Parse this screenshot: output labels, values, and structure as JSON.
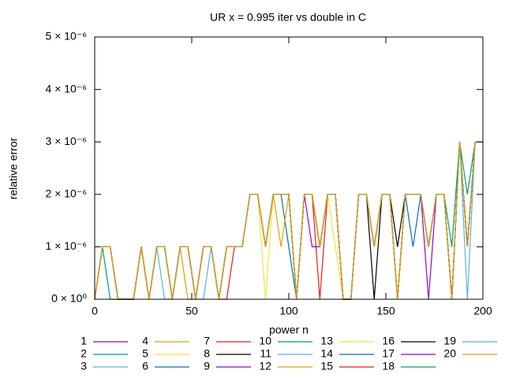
{
  "chart_data": {
    "type": "line",
    "title": "UR x = 0.995 iter vs double in C",
    "x_label": "power n",
    "y_label": "relative error",
    "xlim": [
      0,
      200
    ],
    "ylim": [
      0,
      5e-06
    ],
    "xticks": [
      0,
      50,
      100,
      150,
      200
    ],
    "yticks": [
      {
        "value": 0,
        "label": "0 × 10⁰"
      },
      {
        "value": 1e-06,
        "label": "1 × 10⁻⁶"
      },
      {
        "value": 2e-06,
        "label": "2 × 10⁻⁶"
      },
      {
        "value": 3e-06,
        "label": "3 × 10⁻⁶"
      },
      {
        "value": 4e-06,
        "label": "4 × 10⁻⁶"
      },
      {
        "value": 5e-06,
        "label": "5 × 10⁻⁶"
      }
    ],
    "x": [
      0,
      4,
      8,
      12,
      16,
      20,
      24,
      28,
      32,
      36,
      40,
      44,
      48,
      52,
      56,
      60,
      64,
      68,
      72,
      76,
      80,
      84,
      88,
      92,
      96,
      100,
      104,
      108,
      112,
      116,
      120,
      124,
      128,
      132,
      136,
      140,
      144,
      148,
      152,
      156,
      160,
      164,
      168,
      172,
      176,
      180,
      184,
      188,
      192,
      196,
      200
    ],
    "series": [
      {
        "name": "1",
        "color": "#9400d3",
        "values": [
          0,
          1e-06,
          1e-06,
          0,
          0,
          0,
          1e-06,
          0,
          1e-06,
          1e-06,
          0,
          1e-06,
          1e-06,
          0,
          1e-06,
          1e-06,
          0,
          1e-06,
          1e-06,
          1e-06,
          2e-06,
          2e-06,
          1e-06,
          2e-06,
          2e-06,
          2e-06,
          0,
          2e-06,
          2e-06,
          1e-06,
          2e-06,
          2e-06,
          0,
          0,
          2e-06,
          2e-06,
          1e-06,
          2e-06,
          2e-06,
          0,
          2e-06,
          2e-06,
          2e-06,
          1e-06,
          2e-06,
          2e-06,
          0,
          3e-06,
          1e-06,
          3e-06,
          3e-06
        ]
      },
      {
        "name": "2",
        "color": "#009e73",
        "values": [
          0,
          1e-06,
          0,
          0,
          0,
          0,
          1e-06,
          0,
          1e-06,
          1e-06,
          0,
          1e-06,
          1e-06,
          0,
          1e-06,
          1e-06,
          0,
          1e-06,
          1e-06,
          1e-06,
          2e-06,
          2e-06,
          1e-06,
          2e-06,
          2e-06,
          2e-06,
          0,
          2e-06,
          2e-06,
          1e-06,
          2e-06,
          2e-06,
          0,
          0,
          2e-06,
          2e-06,
          1e-06,
          2e-06,
          2e-06,
          0,
          2e-06,
          2e-06,
          2e-06,
          1e-06,
          2e-06,
          2e-06,
          0,
          3e-06,
          1e-06,
          3e-06,
          3e-06
        ]
      },
      {
        "name": "3",
        "color": "#56b4e9",
        "values": [
          0,
          1e-06,
          1e-06,
          0,
          0,
          0,
          1e-06,
          0,
          1e-06,
          0,
          0,
          1e-06,
          1e-06,
          0,
          1e-06,
          1e-06,
          0,
          1e-06,
          1e-06,
          1e-06,
          2e-06,
          2e-06,
          1e-06,
          2e-06,
          2e-06,
          2e-06,
          0,
          2e-06,
          2e-06,
          1e-06,
          2e-06,
          2e-06,
          0,
          0,
          2e-06,
          2e-06,
          1e-06,
          2e-06,
          2e-06,
          0,
          2e-06,
          2e-06,
          2e-06,
          1e-06,
          2e-06,
          2e-06,
          0,
          3e-06,
          1e-06,
          3e-06,
          3e-06
        ]
      },
      {
        "name": "4",
        "color": "#e69f00",
        "values": [
          0,
          1e-06,
          1e-06,
          0,
          0,
          0,
          1e-06,
          0,
          1e-06,
          1e-06,
          0,
          1e-06,
          0,
          0,
          1e-06,
          1e-06,
          0,
          1e-06,
          1e-06,
          1e-06,
          2e-06,
          2e-06,
          1e-06,
          2e-06,
          2e-06,
          2e-06,
          0,
          2e-06,
          2e-06,
          1e-06,
          2e-06,
          2e-06,
          0,
          0,
          2e-06,
          2e-06,
          1e-06,
          2e-06,
          2e-06,
          0,
          2e-06,
          2e-06,
          2e-06,
          1e-06,
          2e-06,
          2e-06,
          0,
          3e-06,
          1e-06,
          3e-06,
          3e-06
        ]
      },
      {
        "name": "5",
        "color": "#f0e442",
        "values": [
          0,
          1e-06,
          1e-06,
          0,
          0,
          0,
          1e-06,
          0,
          1e-06,
          1e-06,
          0,
          1e-06,
          1e-06,
          0,
          1e-06,
          1e-06,
          0,
          1e-06,
          1e-06,
          1e-06,
          2e-06,
          2e-06,
          0,
          2e-06,
          2e-06,
          2e-06,
          0,
          2e-06,
          2e-06,
          1e-06,
          2e-06,
          2e-06,
          0,
          0,
          2e-06,
          2e-06,
          1e-06,
          2e-06,
          2e-06,
          0,
          2e-06,
          2e-06,
          2e-06,
          1e-06,
          2e-06,
          2e-06,
          0,
          3e-06,
          1e-06,
          3e-06,
          3e-06
        ]
      },
      {
        "name": "6",
        "color": "#0072b2",
        "values": [
          0,
          1e-06,
          1e-06,
          0,
          0,
          0,
          1e-06,
          0,
          1e-06,
          1e-06,
          0,
          1e-06,
          1e-06,
          0,
          1e-06,
          1e-06,
          0,
          1e-06,
          1e-06,
          1e-06,
          2e-06,
          2e-06,
          1e-06,
          2e-06,
          2e-06,
          1e-06,
          0,
          2e-06,
          2e-06,
          1e-06,
          2e-06,
          2e-06,
          0,
          0,
          2e-06,
          2e-06,
          1e-06,
          2e-06,
          2e-06,
          0,
          2e-06,
          2e-06,
          2e-06,
          1e-06,
          2e-06,
          2e-06,
          0,
          3e-06,
          1e-06,
          3e-06,
          3e-06
        ]
      },
      {
        "name": "7",
        "color": "#e51e10",
        "values": [
          0,
          1e-06,
          1e-06,
          0,
          0,
          0,
          1e-06,
          0,
          1e-06,
          1e-06,
          0,
          1e-06,
          1e-06,
          0,
          1e-06,
          1e-06,
          0,
          1e-06,
          1e-06,
          1e-06,
          2e-06,
          2e-06,
          1e-06,
          2e-06,
          2e-06,
          2e-06,
          0,
          2e-06,
          2e-06,
          0,
          2e-06,
          2e-06,
          0,
          0,
          2e-06,
          2e-06,
          1e-06,
          2e-06,
          2e-06,
          0,
          2e-06,
          2e-06,
          2e-06,
          1e-06,
          2e-06,
          2e-06,
          0,
          3e-06,
          1e-06,
          3e-06,
          3e-06
        ]
      },
      {
        "name": "8",
        "color": "#000000",
        "values": [
          0,
          1e-06,
          1e-06,
          0,
          0,
          0,
          1e-06,
          0,
          1e-06,
          1e-06,
          0,
          1e-06,
          1e-06,
          0,
          1e-06,
          1e-06,
          0,
          1e-06,
          1e-06,
          1e-06,
          2e-06,
          2e-06,
          1e-06,
          2e-06,
          2e-06,
          2e-06,
          0,
          2e-06,
          2e-06,
          1e-06,
          2e-06,
          2e-06,
          0,
          0,
          2e-06,
          2e-06,
          0,
          2e-06,
          2e-06,
          0,
          2e-06,
          2e-06,
          2e-06,
          1e-06,
          2e-06,
          2e-06,
          0,
          3e-06,
          1e-06,
          3e-06,
          3e-06
        ]
      },
      {
        "name": "9",
        "color": "#9400d3",
        "values": [
          0,
          1e-06,
          1e-06,
          0,
          0,
          0,
          1e-06,
          0,
          1e-06,
          1e-06,
          0,
          1e-06,
          1e-06,
          0,
          1e-06,
          1e-06,
          0,
          1e-06,
          1e-06,
          1e-06,
          2e-06,
          2e-06,
          1e-06,
          2e-06,
          2e-06,
          2e-06,
          0,
          2e-06,
          2e-06,
          1e-06,
          2e-06,
          2e-06,
          0,
          0,
          2e-06,
          2e-06,
          1e-06,
          2e-06,
          2e-06,
          0,
          2e-06,
          2e-06,
          2e-06,
          0,
          2e-06,
          2e-06,
          0,
          3e-06,
          1e-06,
          3e-06,
          3e-06
        ]
      },
      {
        "name": "10",
        "color": "#009e73",
        "values": [
          0,
          1e-06,
          1e-06,
          0,
          0,
          0,
          1e-06,
          0,
          1e-06,
          1e-06,
          0,
          1e-06,
          1e-06,
          0,
          1e-06,
          1e-06,
          0,
          1e-06,
          1e-06,
          1e-06,
          2e-06,
          2e-06,
          1e-06,
          2e-06,
          2e-06,
          2e-06,
          0,
          2e-06,
          2e-06,
          1e-06,
          2e-06,
          2e-06,
          0,
          0,
          2e-06,
          2e-06,
          1e-06,
          2e-06,
          2e-06,
          0,
          2e-06,
          2e-06,
          2e-06,
          1e-06,
          2e-06,
          2e-06,
          0,
          3e-06,
          2e-06,
          3e-06,
          3e-06
        ]
      },
      {
        "name": "11",
        "color": "#56b4e9",
        "values": [
          0,
          1e-06,
          1e-06,
          0,
          0,
          0,
          1e-06,
          0,
          1e-06,
          1e-06,
          0,
          1e-06,
          1e-06,
          0,
          0,
          1e-06,
          0,
          1e-06,
          1e-06,
          1e-06,
          2e-06,
          2e-06,
          1e-06,
          2e-06,
          2e-06,
          2e-06,
          0,
          2e-06,
          2e-06,
          1e-06,
          2e-06,
          2e-06,
          0,
          0,
          2e-06,
          2e-06,
          1e-06,
          2e-06,
          2e-06,
          0,
          2e-06,
          2e-06,
          2e-06,
          1e-06,
          2e-06,
          2e-06,
          0,
          3e-06,
          1e-06,
          3e-06,
          3e-06
        ]
      },
      {
        "name": "12",
        "color": "#e69f00",
        "values": [
          0,
          1e-06,
          1e-06,
          0,
          0,
          0,
          1e-06,
          0,
          1e-06,
          1e-06,
          0,
          1e-06,
          1e-06,
          0,
          1e-06,
          1e-06,
          0,
          1e-06,
          1e-06,
          1e-06,
          2e-06,
          2e-06,
          1e-06,
          2e-06,
          1e-06,
          2e-06,
          0,
          2e-06,
          2e-06,
          1e-06,
          2e-06,
          2e-06,
          0,
          0,
          2e-06,
          2e-06,
          1e-06,
          2e-06,
          2e-06,
          0,
          2e-06,
          2e-06,
          2e-06,
          1e-06,
          2e-06,
          2e-06,
          0,
          3e-06,
          1e-06,
          3e-06,
          3e-06
        ]
      },
      {
        "name": "13",
        "color": "#f0e442",
        "values": [
          0,
          1e-06,
          1e-06,
          0,
          0,
          0,
          1e-06,
          0,
          1e-06,
          1e-06,
          0,
          1e-06,
          1e-06,
          0,
          1e-06,
          1e-06,
          0,
          1e-06,
          1e-06,
          1e-06,
          2e-06,
          2e-06,
          1e-06,
          2e-06,
          2e-06,
          2e-06,
          0,
          2e-06,
          2e-06,
          1e-06,
          2e-06,
          1e-06,
          0,
          0,
          2e-06,
          2e-06,
          1e-06,
          2e-06,
          2e-06,
          0,
          2e-06,
          2e-06,
          2e-06,
          1e-06,
          2e-06,
          2e-06,
          0,
          3e-06,
          1e-06,
          3e-06,
          3e-06
        ]
      },
      {
        "name": "14",
        "color": "#0072b2",
        "values": [
          0,
          1e-06,
          1e-06,
          0,
          0,
          0,
          1e-06,
          0,
          1e-06,
          1e-06,
          0,
          1e-06,
          1e-06,
          0,
          1e-06,
          1e-06,
          0,
          1e-06,
          1e-06,
          1e-06,
          2e-06,
          2e-06,
          1e-06,
          2e-06,
          2e-06,
          2e-06,
          0,
          2e-06,
          2e-06,
          1e-06,
          2e-06,
          2e-06,
          0,
          0,
          2e-06,
          2e-06,
          1e-06,
          2e-06,
          2e-06,
          0,
          2e-06,
          1e-06,
          2e-06,
          1e-06,
          2e-06,
          2e-06,
          0,
          3e-06,
          1e-06,
          3e-06,
          3e-06
        ]
      },
      {
        "name": "15",
        "color": "#e51e10",
        "values": [
          0,
          1e-06,
          1e-06,
          0,
          0,
          0,
          1e-06,
          0,
          1e-06,
          1e-06,
          0,
          1e-06,
          1e-06,
          0,
          1e-06,
          1e-06,
          0,
          0,
          1e-06,
          1e-06,
          2e-06,
          2e-06,
          1e-06,
          2e-06,
          2e-06,
          2e-06,
          0,
          2e-06,
          2e-06,
          1e-06,
          2e-06,
          2e-06,
          0,
          0,
          2e-06,
          2e-06,
          1e-06,
          2e-06,
          2e-06,
          0,
          2e-06,
          2e-06,
          2e-06,
          1e-06,
          2e-06,
          2e-06,
          0,
          3e-06,
          1e-06,
          3e-06,
          3e-06
        ]
      },
      {
        "name": "16",
        "color": "#000000",
        "values": [
          0,
          1e-06,
          1e-06,
          0,
          0,
          0,
          1e-06,
          0,
          1e-06,
          1e-06,
          0,
          1e-06,
          1e-06,
          0,
          1e-06,
          1e-06,
          0,
          1e-06,
          1e-06,
          1e-06,
          2e-06,
          2e-06,
          1e-06,
          2e-06,
          2e-06,
          2e-06,
          0,
          2e-06,
          2e-06,
          1e-06,
          2e-06,
          2e-06,
          0,
          0,
          2e-06,
          2e-06,
          1e-06,
          2e-06,
          2e-06,
          1e-06,
          2e-06,
          2e-06,
          2e-06,
          1e-06,
          2e-06,
          2e-06,
          0,
          3e-06,
          1e-06,
          3e-06,
          3e-06
        ]
      },
      {
        "name": "17",
        "color": "#9400d3",
        "values": [
          0,
          1e-06,
          1e-06,
          0,
          0,
          0,
          1e-06,
          0,
          1e-06,
          1e-06,
          0,
          1e-06,
          1e-06,
          0,
          1e-06,
          1e-06,
          0,
          1e-06,
          1e-06,
          1e-06,
          2e-06,
          2e-06,
          1e-06,
          2e-06,
          2e-06,
          2e-06,
          0,
          2e-06,
          1e-06,
          1e-06,
          2e-06,
          2e-06,
          0,
          0,
          2e-06,
          2e-06,
          1e-06,
          2e-06,
          2e-06,
          0,
          2e-06,
          2e-06,
          2e-06,
          1e-06,
          2e-06,
          2e-06,
          0,
          3e-06,
          1e-06,
          3e-06,
          3e-06
        ]
      },
      {
        "name": "18",
        "color": "#009e73",
        "values": [
          0,
          1e-06,
          1e-06,
          0,
          0,
          0,
          1e-06,
          0,
          1e-06,
          1e-06,
          0,
          1e-06,
          1e-06,
          0,
          1e-06,
          1e-06,
          0,
          1e-06,
          1e-06,
          1e-06,
          2e-06,
          2e-06,
          1e-06,
          2e-06,
          2e-06,
          2e-06,
          0,
          2e-06,
          2e-06,
          1e-06,
          2e-06,
          2e-06,
          0,
          0,
          2e-06,
          2e-06,
          1e-06,
          2e-06,
          2e-06,
          0,
          2e-06,
          2e-06,
          2e-06,
          1e-06,
          2e-06,
          2e-06,
          1e-06,
          3e-06,
          1e-06,
          3e-06,
          3e-06
        ]
      },
      {
        "name": "19",
        "color": "#56b4e9",
        "values": [
          0,
          1e-06,
          1e-06,
          0,
          0,
          0,
          1e-06,
          0,
          1e-06,
          1e-06,
          0,
          1e-06,
          1e-06,
          0,
          1e-06,
          1e-06,
          0,
          1e-06,
          1e-06,
          1e-06,
          2e-06,
          2e-06,
          1e-06,
          2e-06,
          2e-06,
          2e-06,
          0,
          2e-06,
          2e-06,
          1e-06,
          2e-06,
          2e-06,
          0,
          0,
          2e-06,
          2e-06,
          1e-06,
          2e-06,
          2e-06,
          0,
          2e-06,
          2e-06,
          2e-06,
          1e-06,
          2e-06,
          2e-06,
          0,
          3e-06,
          0,
          3e-06,
          3e-06
        ]
      },
      {
        "name": "20",
        "color": "#e69f00",
        "values": [
          0,
          1e-06,
          1e-06,
          0,
          0,
          0,
          1e-06,
          0,
          1e-06,
          1e-06,
          0,
          1e-06,
          1e-06,
          0,
          1e-06,
          1e-06,
          0,
          1e-06,
          1e-06,
          1e-06,
          2e-06,
          2e-06,
          1e-06,
          2e-06,
          2e-06,
          2e-06,
          0,
          2e-06,
          2e-06,
          1e-06,
          2e-06,
          2e-06,
          0,
          0,
          2e-06,
          2e-06,
          1e-06,
          2e-06,
          2e-06,
          0,
          2e-06,
          2e-06,
          2e-06,
          1e-06,
          2e-06,
          2e-06,
          0,
          3e-06,
          1e-06,
          3e-06,
          3e-06
        ]
      }
    ],
    "legend": "below",
    "legend_columns": 7
  }
}
